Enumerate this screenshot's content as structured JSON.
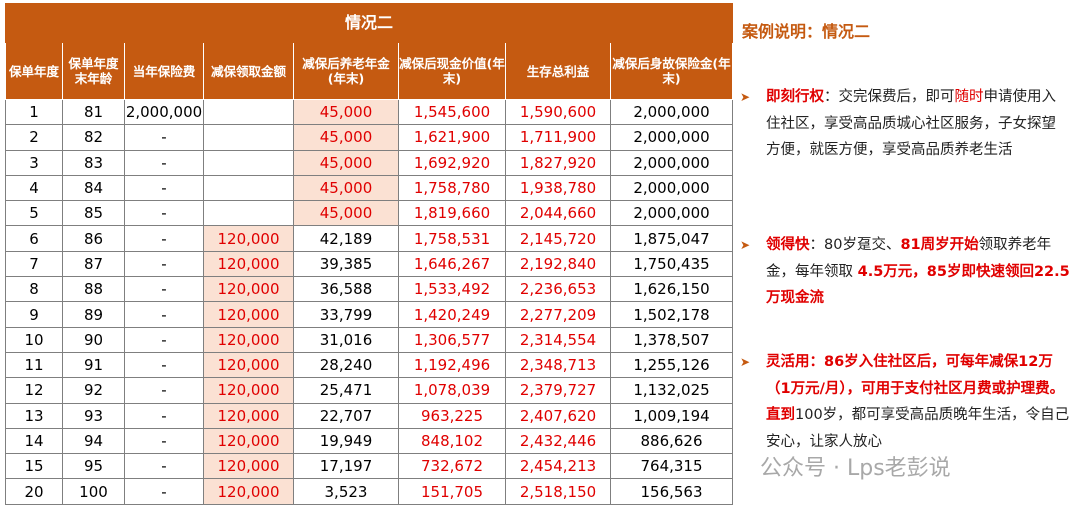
{
  "table": {
    "title": "情况二",
    "header": [
      "保单年度",
      "保单年度末年龄",
      "当年保险费",
      "减保领取金额",
      "减保后养老年金(年末)",
      "减保后现金价值(年末)",
      "生存总利益",
      "减保后身故保险金(年末)"
    ],
    "rows": [
      [
        "1",
        "81",
        "2,000,000",
        null,
        "45,000",
        "1,545,600",
        "1,590,600",
        "2,000,000"
      ],
      [
        "2",
        "82",
        "-",
        null,
        "45,000",
        "1,621,900",
        "1,711,900",
        "2,000,000"
      ],
      [
        "3",
        "83",
        "-",
        null,
        "45,000",
        "1,692,920",
        "1,827,920",
        "2,000,000"
      ],
      [
        "4",
        "84",
        "-",
        null,
        "45,000",
        "1,758,780",
        "1,938,780",
        "2,000,000"
      ],
      [
        "5",
        "85",
        "-",
        null,
        "45,000",
        "1,819,660",
        "2,044,660",
        "2,000,000"
      ],
      [
        "6",
        "86",
        "-",
        "120,000",
        "42,189",
        "1,758,531",
        "2,145,720",
        "1,875,047"
      ],
      [
        "7",
        "87",
        "-",
        "120,000",
        "39,385",
        "1,646,267",
        "2,192,840",
        "1,750,435"
      ],
      [
        "8",
        "88",
        "-",
        "120,000",
        "36,588",
        "1,533,492",
        "2,236,653",
        "1,626,150"
      ],
      [
        "9",
        "89",
        "-",
        "120,000",
        "33,799",
        "1,420,249",
        "2,277,209",
        "1,502,178"
      ],
      [
        "10",
        "90",
        "-",
        "120,000",
        "31,016",
        "1,306,577",
        "2,314,554",
        "1,378,507"
      ],
      [
        "11",
        "91",
        "-",
        "120,000",
        "28,240",
        "1,192,496",
        "2,348,713",
        "1,255,126"
      ],
      [
        "12",
        "92",
        "-",
        "120,000",
        "25,471",
        "1,078,039",
        "2,379,727",
        "1,132,025"
      ],
      [
        "13",
        "93",
        "-",
        "120,000",
        "22,707",
        "963,225",
        "2,407,620",
        "1,009,194"
      ],
      [
        "14",
        "94",
        "-",
        "120,000",
        "19,949",
        "848,102",
        "2,432,446",
        "886,626"
      ],
      [
        "15",
        "95",
        "-",
        "120,000",
        "17,197",
        "732,672",
        "2,454,213",
        "764,315"
      ],
      [
        "20",
        "100",
        "-",
        "120,000",
        "3,523",
        "151,705",
        "2,518,150",
        "156,563"
      ]
    ]
  },
  "notes": {
    "title": "案例说明：情况二",
    "items": [
      {
        "segments": [
          "即刻行权",
          "：交完保费后，即可",
          "随时",
          "申请使用入住社区，享受高品质城心社区服务，子女探望方便，就医方便，享受高品质养老生活"
        ]
      },
      {
        "segments": [
          "领得快",
          "：80岁趸交、",
          "81周岁开始",
          "领取养老年金，每年领取 ",
          "4.5万元，85岁即快速领回22.5万现金流"
        ]
      },
      {
        "segments": [
          "灵活用：86岁入住社区后，可每年减保12万（1万元/月），可用于支付社区月费或护理费。直到",
          "100岁，都可享受高品质晚年生活，令自己安心，让家人放心"
        ]
      }
    ]
  },
  "watermark": "公众号 · Lps老彭说"
}
